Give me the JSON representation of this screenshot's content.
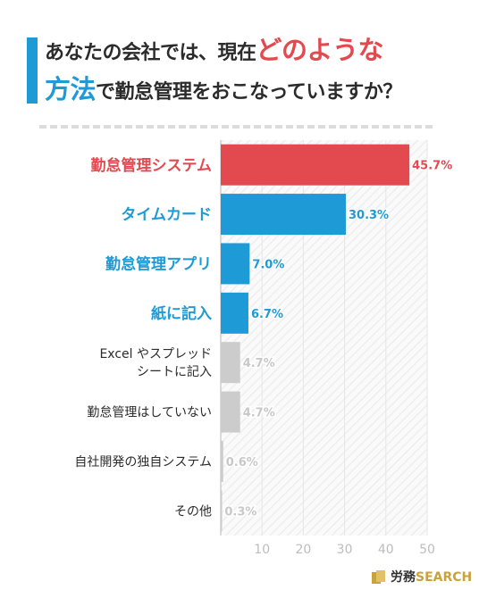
{
  "title": {
    "line1_normal": "あなたの会社では、現在",
    "line1_highlight": "どのような",
    "line2_highlight": "方法",
    "line2_normal": "で勤怠管理をおこなっていますか？"
  },
  "chart_data": {
    "type": "bar",
    "orientation": "horizontal",
    "categories": [
      [
        "勤怠管理システム"
      ],
      [
        "タイムカード"
      ],
      [
        "勤怠管理アプリ"
      ],
      [
        "紙に記入"
      ],
      [
        "Excel やスプレッド",
        "シートに記入"
      ],
      [
        "勤怠管理はしていない"
      ],
      [
        "自社開発の独自システム"
      ],
      [
        "その他"
      ]
    ],
    "values": [
      45.7,
      30.3,
      7.0,
      6.7,
      4.7,
      4.7,
      0.6,
      0.3
    ],
    "value_labels": [
      "45.7%",
      "30.3%",
      "7.0%",
      "6.7%",
      "4.7%",
      "4.7%",
      "0.6%",
      "0.3%"
    ],
    "bar_colors": [
      "#e24a50",
      "#1e9ad6",
      "#1e9ad6",
      "#1e9ad6",
      "#cccccc",
      "#cccccc",
      "#cccccc",
      "#cccccc"
    ],
    "label_colors": [
      "#e24a50",
      "#1e9ad6",
      "#1e9ad6",
      "#1e9ad6",
      "#2b2b2b",
      "#2b2b2b",
      "#2b2b2b",
      "#2b2b2b"
    ],
    "value_label_colors": [
      "#e24a50",
      "#1e9ad6",
      "#1e9ad6",
      "#1e9ad6",
      "#c8c8c8",
      "#c8c8c8",
      "#c8c8c8",
      "#c8c8c8"
    ],
    "xticks": [
      10,
      20,
      30,
      40,
      50
    ],
    "xlim": [
      0,
      50
    ],
    "grid": true
  },
  "logo": {
    "text_a": "労務",
    "text_b": "SEARCH",
    "accent": "#c9a23c"
  }
}
